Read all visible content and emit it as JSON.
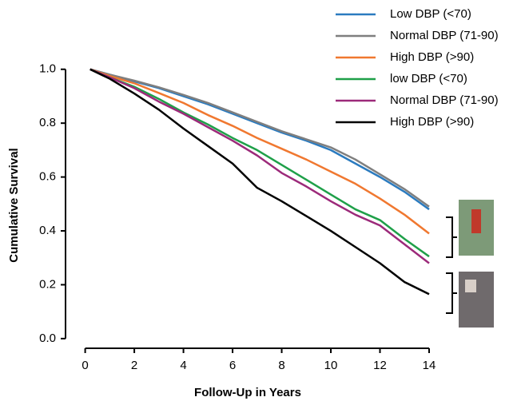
{
  "chart_data": {
    "type": "line",
    "xlabel": "Follow-Up in Years",
    "ylabel": "Cumulative Survival",
    "x": [
      0.2,
      1,
      2,
      3,
      4,
      5,
      6,
      7,
      8,
      9,
      10,
      11,
      12,
      13,
      14
    ],
    "series": [
      {
        "name": "Low DBP (<70)",
        "color": "#2b7bbf",
        "values": [
          1.0,
          0.98,
          0.955,
          0.93,
          0.9,
          0.87,
          0.835,
          0.8,
          0.765,
          0.735,
          0.7,
          0.65,
          0.6,
          0.545,
          0.48
        ]
      },
      {
        "name": "Normal DBP (71-90)",
        "color": "#7f7f7f",
        "values": [
          1.0,
          0.98,
          0.958,
          0.933,
          0.905,
          0.875,
          0.84,
          0.805,
          0.77,
          0.74,
          0.71,
          0.665,
          0.61,
          0.555,
          0.49
        ]
      },
      {
        "name": "High DBP (>90)",
        "color": "#f07830",
        "values": [
          1.0,
          0.975,
          0.948,
          0.912,
          0.875,
          0.83,
          0.79,
          0.745,
          0.705,
          0.665,
          0.62,
          0.575,
          0.52,
          0.46,
          0.39
        ]
      },
      {
        "name": "low DBP (<70)",
        "color": "#1fa049",
        "values": [
          1.0,
          0.97,
          0.935,
          0.89,
          0.84,
          0.795,
          0.745,
          0.7,
          0.645,
          0.59,
          0.535,
          0.48,
          0.44,
          0.37,
          0.305
        ]
      },
      {
        "name": "Normal DBP (71-90)",
        "color": "#9c2a7a",
        "values": [
          1.0,
          0.97,
          0.93,
          0.88,
          0.835,
          0.785,
          0.735,
          0.68,
          0.615,
          0.565,
          0.51,
          0.46,
          0.42,
          0.35,
          0.28
        ]
      },
      {
        "name": "High DBP (>90)",
        "color": "#000000",
        "values": [
          1.0,
          0.965,
          0.91,
          0.85,
          0.78,
          0.715,
          0.65,
          0.56,
          0.51,
          0.455,
          0.4,
          0.34,
          0.28,
          0.21,
          0.165
        ]
      }
    ],
    "xlim": [
      -0.8,
      14
    ],
    "ylim": [
      -0.03,
      1.02
    ],
    "xticks": [
      0,
      2,
      4,
      6,
      8,
      10,
      12,
      14
    ],
    "yticks": [
      {
        "value": 0,
        "label": "0.0"
      },
      {
        "value": 0.2,
        "label": "0.2"
      },
      {
        "value": 0.4,
        "label": "0.4"
      },
      {
        "value": 0.6,
        "label": "0.6"
      },
      {
        "value": 0.8,
        "label": "0.8"
      },
      {
        "value": 1,
        "label": "1.0"
      }
    ],
    "legend": "upper right",
    "grid": false
  }
}
